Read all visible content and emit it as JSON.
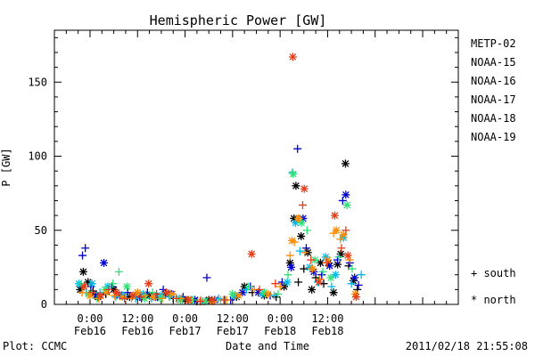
{
  "chart_data": {
    "type": "scatter",
    "title": "Hemispheric Power [GW]",
    "ylabel": "P [GW]",
    "xlabel": "Date and Time",
    "ylim": [
      0,
      185
    ],
    "yticks": [
      0,
      50,
      100,
      150
    ],
    "xrange_hours": [
      -9,
      93
    ],
    "xticks": [
      {
        "hour": 0,
        "time": "0:00",
        "date": "Feb16"
      },
      {
        "hour": 12,
        "time": "12:00",
        "date": "Feb16"
      },
      {
        "hour": 24,
        "time": "0:00",
        "date": "Feb17"
      },
      {
        "hour": 36,
        "time": "12:00",
        "date": "Feb17"
      },
      {
        "hour": 48,
        "time": "0:00",
        "date": "Feb18"
      },
      {
        "hour": 60,
        "time": "12:00",
        "date": "Feb18"
      }
    ],
    "footer_left": "Plot: CCMC",
    "footer_right": "2011/02/18 21:55:08",
    "marker_legend": [
      {
        "symbol": "+",
        "label": "south"
      },
      {
        "symbol": "*",
        "label": "north"
      }
    ],
    "series": [
      {
        "name": "METP-02",
        "color": "#000000",
        "points": [
          [
            -2.5,
            10,
            "*"
          ],
          [
            -1.7,
            22,
            "*"
          ],
          [
            -0.5,
            15,
            "*"
          ],
          [
            0.8,
            9,
            "+"
          ],
          [
            2.0,
            5,
            "*"
          ],
          [
            4.0,
            7,
            "+"
          ],
          [
            6.0,
            10,
            "*"
          ],
          [
            8.0,
            6,
            "+"
          ],
          [
            10.0,
            5,
            "*"
          ],
          [
            13.0,
            4,
            "+"
          ],
          [
            15.0,
            6,
            "*"
          ],
          [
            17.0,
            5,
            "+"
          ],
          [
            19.0,
            7,
            "*"
          ],
          [
            21.0,
            4,
            "+"
          ],
          [
            24.0,
            3,
            "*"
          ],
          [
            27.0,
            2,
            "+"
          ],
          [
            30.0,
            3,
            "*"
          ],
          [
            34.0,
            3,
            "+"
          ],
          [
            37.0,
            5,
            "*"
          ],
          [
            39.0,
            12,
            "*"
          ],
          [
            41.0,
            8,
            "+"
          ],
          [
            44.0,
            6,
            "*"
          ],
          [
            47.0,
            5,
            "+"
          ],
          [
            49.0,
            12,
            "*"
          ],
          [
            50.5,
            28,
            "*"
          ],
          [
            51.5,
            58,
            "*"
          ],
          [
            52.0,
            80,
            "*"
          ],
          [
            52.6,
            15,
            "+"
          ],
          [
            53.3,
            46,
            "*"
          ],
          [
            54.0,
            24,
            "+"
          ],
          [
            55.0,
            35,
            "*"
          ],
          [
            56.0,
            10,
            "*"
          ],
          [
            57.0,
            18,
            "+"
          ],
          [
            58.2,
            28,
            "*"
          ],
          [
            59.0,
            14,
            "+"
          ],
          [
            60.2,
            28,
            "*"
          ],
          [
            61.5,
            8,
            "*"
          ],
          [
            62.5,
            27,
            "*"
          ],
          [
            63.3,
            34,
            "*"
          ],
          [
            64.5,
            95,
            "*"
          ],
          [
            65.3,
            26,
            "+"
          ],
          [
            66.5,
            16,
            "*"
          ],
          [
            67.5,
            10,
            "+"
          ]
        ]
      },
      {
        "name": "NOAA-15",
        "color": "#0000cc",
        "points": [
          [
            -1.9,
            33,
            "+"
          ],
          [
            -1.2,
            38,
            "+"
          ],
          [
            0.2,
            12,
            "+"
          ],
          [
            1.5,
            6,
            "*"
          ],
          [
            3.5,
            28,
            "*"
          ],
          [
            5.5,
            12,
            "+"
          ],
          [
            7.5,
            6,
            "*"
          ],
          [
            9.5,
            8,
            "+"
          ],
          [
            12.5,
            5,
            "*"
          ],
          [
            14.5,
            8,
            "+"
          ],
          [
            16.5,
            5,
            "*"
          ],
          [
            18.5,
            10,
            "+"
          ],
          [
            20.5,
            7,
            "*"
          ],
          [
            23.5,
            5,
            "+"
          ],
          [
            26.5,
            3,
            "*"
          ],
          [
            29.5,
            18,
            "+"
          ],
          [
            31.5,
            3,
            "*"
          ],
          [
            35.5,
            3,
            "+"
          ],
          [
            38.5,
            8,
            "*"
          ],
          [
            40.5,
            12,
            "+"
          ],
          [
            42.5,
            8,
            "*"
          ],
          [
            45.5,
            6,
            "+"
          ],
          [
            48.5,
            15,
            "+"
          ],
          [
            50.8,
            25,
            "*"
          ],
          [
            52.4,
            105,
            "+"
          ],
          [
            53.8,
            58,
            "*"
          ],
          [
            54.6,
            38,
            "+"
          ],
          [
            56.5,
            22,
            "*"
          ],
          [
            58.5,
            20,
            "+"
          ],
          [
            60.5,
            26,
            "*"
          ],
          [
            62.5,
            30,
            "+"
          ],
          [
            63.8,
            70,
            "+"
          ],
          [
            64.6,
            74,
            "*"
          ],
          [
            65.6,
            28,
            "+"
          ],
          [
            66.8,
            18,
            "*"
          ],
          [
            67.8,
            13,
            "+"
          ]
        ]
      },
      {
        "name": "NOAA-16",
        "color": "#00b8e8",
        "points": [
          [
            -2.8,
            14,
            "*"
          ],
          [
            -1.0,
            8,
            "+"
          ],
          [
            0.5,
            14,
            "*"
          ],
          [
            2.5,
            8,
            "+"
          ],
          [
            4.5,
            12,
            "*"
          ],
          [
            6.5,
            5,
            "+"
          ],
          [
            8.5,
            6,
            "*"
          ],
          [
            11.5,
            4,
            "+"
          ],
          [
            13.5,
            7,
            "*"
          ],
          [
            15.5,
            4,
            "+"
          ],
          [
            18.0,
            6,
            "*"
          ],
          [
            20.0,
            5,
            "+"
          ],
          [
            22.5,
            4,
            "*"
          ],
          [
            25.5,
            3,
            "+"
          ],
          [
            28.5,
            2,
            "*"
          ],
          [
            32.5,
            4,
            "+"
          ],
          [
            36.5,
            6,
            "*"
          ],
          [
            39.5,
            10,
            "+"
          ],
          [
            43.5,
            7,
            "*"
          ],
          [
            46.5,
            6,
            "+"
          ],
          [
            49.8,
            15,
            "*"
          ],
          [
            51.1,
            89,
            "+"
          ],
          [
            51.9,
            55,
            "*"
          ],
          [
            53.0,
            36,
            "+"
          ],
          [
            55.5,
            25,
            "*"
          ],
          [
            57.5,
            15,
            "+"
          ],
          [
            59.5,
            32,
            "*"
          ],
          [
            61.0,
            12,
            "+"
          ],
          [
            62.0,
            20,
            "*"
          ],
          [
            64.0,
            45,
            "*"
          ],
          [
            66.0,
            14,
            "+"
          ],
          [
            68.5,
            20,
            "+"
          ]
        ]
      },
      {
        "name": "NOAA-17",
        "color": "#33e077",
        "points": [
          [
            -2.2,
            14,
            "+"
          ],
          [
            -0.3,
            7,
            "*"
          ],
          [
            1.8,
            4,
            "+"
          ],
          [
            3.8,
            10,
            "*"
          ],
          [
            5.8,
            14,
            "+"
          ],
          [
            7.3,
            22,
            "+"
          ],
          [
            9.3,
            12,
            "*"
          ],
          [
            11.3,
            6,
            "+"
          ],
          [
            13.8,
            4,
            "*"
          ],
          [
            15.8,
            8,
            "+"
          ],
          [
            17.8,
            4,
            "*"
          ],
          [
            20.3,
            6,
            "+"
          ],
          [
            22.8,
            3,
            "*"
          ],
          [
            26.0,
            3,
            "+"
          ],
          [
            29.0,
            2,
            "*"
          ],
          [
            33.0,
            3,
            "+"
          ],
          [
            36.0,
            7,
            "*"
          ],
          [
            40.0,
            12,
            "+"
          ],
          [
            44.0,
            8,
            "*"
          ],
          [
            47.5,
            7,
            "+"
          ],
          [
            50.0,
            20,
            "+"
          ],
          [
            51.3,
            88,
            "*"
          ],
          [
            52.8,
            58,
            "+"
          ],
          [
            53.4,
            55,
            "*"
          ],
          [
            54.8,
            50,
            "+"
          ],
          [
            56.8,
            30,
            "*"
          ],
          [
            58.8,
            22,
            "+"
          ],
          [
            60.8,
            18,
            "*"
          ],
          [
            62.8,
            32,
            "+"
          ],
          [
            64.9,
            67,
            "*"
          ],
          [
            66.2,
            24,
            "+"
          ]
        ]
      },
      {
        "name": "NOAA-18",
        "color": "#ff8c00",
        "points": [
          [
            -2.0,
            8,
            "+"
          ],
          [
            0.0,
            6,
            "*"
          ],
          [
            2.2,
            4,
            "+"
          ],
          [
            4.2,
            8,
            "*"
          ],
          [
            6.2,
            6,
            "+"
          ],
          [
            8.2,
            5,
            "*"
          ],
          [
            10.5,
            4,
            "+"
          ],
          [
            12.0,
            8,
            "*"
          ],
          [
            14.0,
            6,
            "+"
          ],
          [
            16.0,
            5,
            "*"
          ],
          [
            18.2,
            4,
            "+"
          ],
          [
            20.8,
            7,
            "*"
          ],
          [
            23.0,
            4,
            "+"
          ],
          [
            25.0,
            3,
            "*"
          ],
          [
            28.0,
            3,
            "+"
          ],
          [
            31.0,
            2,
            "*"
          ],
          [
            34.5,
            3,
            "+"
          ],
          [
            37.5,
            6,
            "*"
          ],
          [
            41.5,
            10,
            "+"
          ],
          [
            45.0,
            7,
            "*"
          ],
          [
            48.0,
            12,
            "+"
          ],
          [
            50.5,
            33,
            "+"
          ],
          [
            51.0,
            43,
            "*"
          ],
          [
            51.6,
            42,
            "+"
          ],
          [
            52.6,
            58,
            "*"
          ],
          [
            54.2,
            35,
            "+"
          ],
          [
            56.2,
            24,
            "*"
          ],
          [
            58.0,
            17,
            "+"
          ],
          [
            60.0,
            30,
            "*"
          ],
          [
            61.5,
            48,
            "+"
          ],
          [
            62.2,
            50,
            "*"
          ],
          [
            63.2,
            44,
            "+"
          ],
          [
            64.0,
            47,
            "*"
          ],
          [
            65.5,
            30,
            "+"
          ],
          [
            67.0,
            7,
            "*"
          ]
        ]
      },
      {
        "name": "NOAA-19",
        "color": "#e33d1a",
        "points": [
          [
            -1.5,
            12,
            "*"
          ],
          [
            0.6,
            8,
            "+"
          ],
          [
            2.7,
            6,
            "*"
          ],
          [
            4.7,
            10,
            "+"
          ],
          [
            6.7,
            8,
            "*"
          ],
          [
            8.7,
            4,
            "+"
          ],
          [
            10.8,
            6,
            "*"
          ],
          [
            12.8,
            5,
            "+"
          ],
          [
            14.8,
            14,
            "*"
          ],
          [
            16.8,
            7,
            "+"
          ],
          [
            19.3,
            8,
            "*"
          ],
          [
            21.8,
            4,
            "+"
          ],
          [
            24.8,
            3,
            "*"
          ],
          [
            27.8,
            2,
            "+"
          ],
          [
            30.8,
            3,
            "*"
          ],
          [
            33.8,
            3,
            "+"
          ],
          [
            40.8,
            34,
            "*"
          ],
          [
            42.8,
            10,
            "+"
          ],
          [
            46.8,
            14,
            "+"
          ],
          [
            51.2,
            167,
            "*"
          ],
          [
            53.7,
            67,
            "+"
          ],
          [
            54.1,
            78,
            "*"
          ],
          [
            55.8,
            30,
            "+"
          ],
          [
            57.8,
            15,
            "*"
          ],
          [
            59.8,
            28,
            "+"
          ],
          [
            61.8,
            60,
            "*"
          ],
          [
            63.5,
            38,
            "+"
          ],
          [
            64.6,
            50,
            "+"
          ],
          [
            65.1,
            33,
            "*"
          ],
          [
            67.2,
            5,
            "*"
          ]
        ]
      }
    ]
  }
}
